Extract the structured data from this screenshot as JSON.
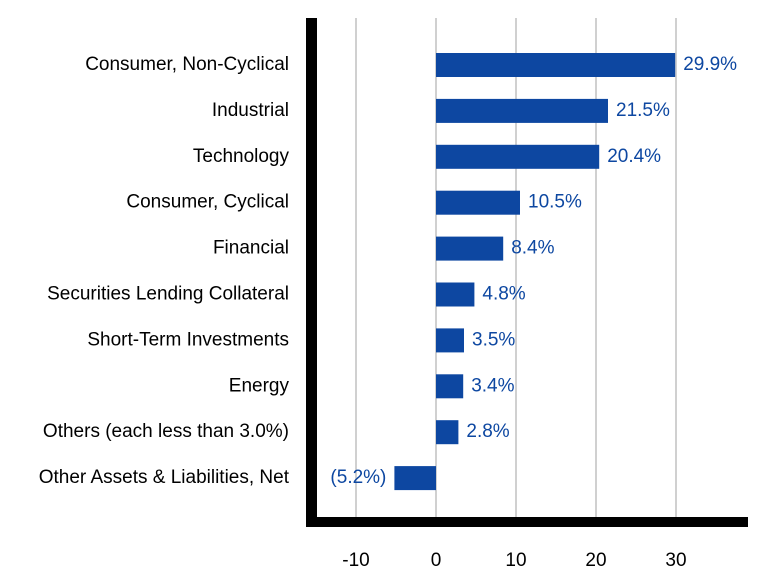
{
  "chart_data": {
    "type": "bar",
    "orientation": "horizontal",
    "categories": [
      "Consumer, Non-Cyclical",
      "Industrial",
      "Technology",
      "Consumer, Cyclical",
      "Financial",
      "Securities Lending Collateral",
      "Short-Term Investments",
      "Energy",
      "Others (each less than 3.0%)",
      "Other Assets & Liabilities, Net"
    ],
    "values": [
      29.9,
      21.5,
      20.4,
      10.5,
      8.4,
      4.8,
      3.5,
      3.4,
      2.8,
      -5.2
    ],
    "data_labels": [
      "29.9%",
      "21.5%",
      "20.4%",
      "10.5%",
      "8.4%",
      "4.8%",
      "3.5%",
      "3.4%",
      "2.8%",
      "(5.2%)"
    ],
    "x_ticks": [
      -10,
      0,
      10,
      20,
      30
    ],
    "x_tick_labels": [
      "-10",
      "0",
      "10",
      "20",
      "30"
    ],
    "xlim": [
      -15.5,
      39
    ],
    "grid": "vertical",
    "colors": {
      "bar": "#0d47a1",
      "label": "#0d47a1",
      "axis": "#000000",
      "grid": "#d0d0d0"
    },
    "title": "",
    "xlabel": "",
    "ylabel": ""
  }
}
